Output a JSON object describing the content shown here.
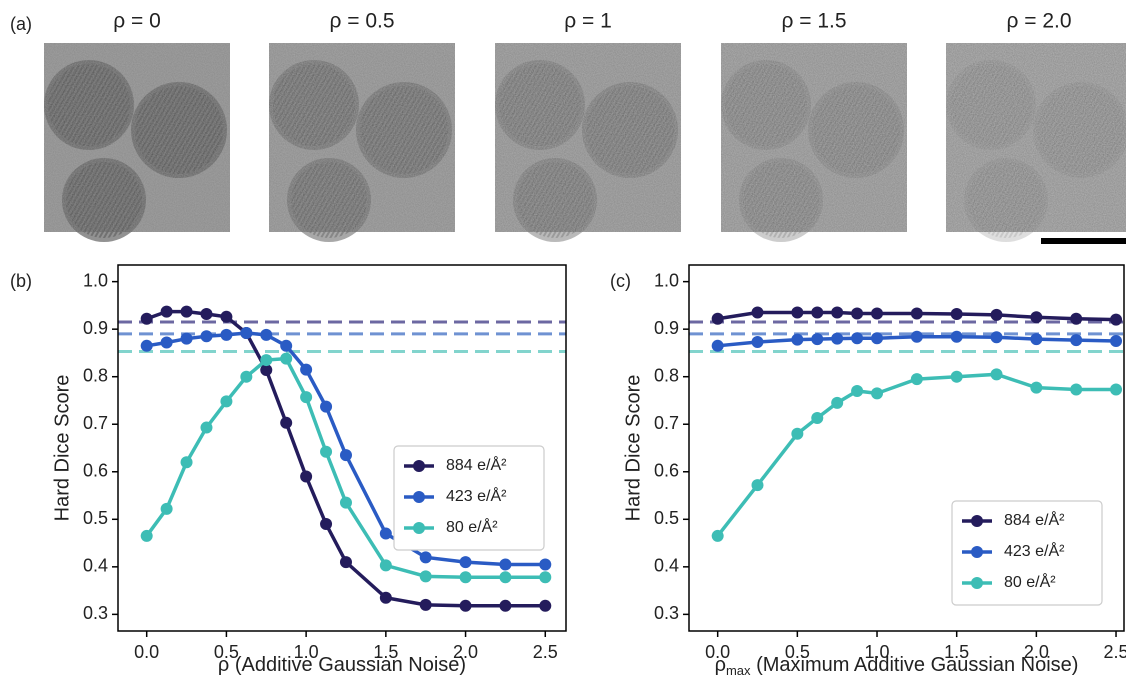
{
  "figure": {
    "panel_label": "(a)",
    "images": [
      {
        "label": "ρ = 0"
      },
      {
        "label": "ρ = 0.5"
      },
      {
        "label": "ρ = 1"
      },
      {
        "label": "ρ = 1.5"
      },
      {
        "label": "ρ = 2.0"
      }
    ]
  },
  "chart_data": [
    {
      "type": "line",
      "panel_label": "(b)",
      "ylabel": "Hard Dice Score",
      "xlabel": "ρ (Additive Gaussian Noise)",
      "x": [
        0,
        0.125,
        0.25,
        0.375,
        0.5,
        0.625,
        0.75,
        0.875,
        1.0,
        1.125,
        1.25,
        1.5,
        1.75,
        2.0,
        2.25,
        2.5
      ],
      "series": [
        {
          "name": "884 e/Å²",
          "color": "#241c5c",
          "values": [
            0.922,
            0.937,
            0.937,
            0.932,
            0.926,
            0.892,
            0.814,
            0.703,
            0.59,
            0.49,
            0.41,
            0.335,
            0.32,
            0.318,
            0.318,
            0.318
          ]
        },
        {
          "name": "423 e/Å²",
          "color": "#2a5bc4",
          "values": [
            0.865,
            0.872,
            0.88,
            0.885,
            0.888,
            0.892,
            0.888,
            0.865,
            0.815,
            0.737,
            0.635,
            0.47,
            0.42,
            0.41,
            0.405,
            0.405
          ]
        },
        {
          "name": "80 e/Å²",
          "color": "#3dbdb5",
          "values": [
            0.465,
            0.522,
            0.62,
            0.693,
            0.748,
            0.8,
            0.835,
            0.838,
            0.757,
            0.642,
            0.535,
            0.403,
            0.38,
            0.378,
            0.378,
            0.378
          ]
        }
      ],
      "reference_lines": [
        {
          "value": 0.915,
          "color": "#6c68a2"
        },
        {
          "value": 0.89,
          "color": "#6f92d2"
        },
        {
          "value": 0.853,
          "color": "#82d4cd"
        }
      ],
      "xlim": [
        -0.18,
        2.63
      ],
      "ylim": [
        0.265,
        1.035
      ],
      "xticks": [
        {
          "value": 0,
          "label": "0.0"
        },
        0.5,
        {
          "value": 1,
          "label": "1.0"
        },
        1.5,
        {
          "value": 2,
          "label": "2.0"
        },
        2.5
      ],
      "yticks": [
        0.3,
        0.4,
        0.5,
        0.6,
        0.7,
        0.8,
        0.9,
        {
          "value": 1,
          "label": "1.0"
        }
      ],
      "legend": "center right"
    },
    {
      "type": "line",
      "panel_label": "(c)",
      "ylabel": "Hard Dice Score",
      "xlabel": "ρ",
      "xlabel_sub": "max",
      "xlabel_rest": " (Maximum Additive Gaussian Noise)",
      "x": [
        0,
        0.25,
        0.5,
        0.625,
        0.75,
        0.875,
        1.0,
        1.25,
        1.5,
        1.75,
        2.0,
        2.25,
        2.5
      ],
      "series": [
        {
          "name": "884 e/Å²",
          "color": "#241c5c",
          "values": [
            0.922,
            0.935,
            0.935,
            0.935,
            0.935,
            0.933,
            0.933,
            0.933,
            0.932,
            0.93,
            0.925,
            0.922,
            0.92
          ]
        },
        {
          "name": "423 e/Å²",
          "color": "#2a5bc4",
          "values": [
            0.865,
            0.873,
            0.878,
            0.879,
            0.88,
            0.881,
            0.881,
            0.884,
            0.884,
            0.883,
            0.879,
            0.877,
            0.875
          ]
        },
        {
          "name": "80 e/Å²",
          "color": "#3dbdb5",
          "values": [
            0.465,
            0.572,
            0.68,
            0.713,
            0.745,
            0.77,
            0.765,
            0.795,
            0.8,
            0.805,
            0.777,
            0.773,
            0.773
          ]
        }
      ],
      "reference_lines": [
        {
          "value": 0.915,
          "color": "#6c68a2"
        },
        {
          "value": 0.89,
          "color": "#6f92d2"
        },
        {
          "value": 0.853,
          "color": "#82d4cd"
        }
      ],
      "xlim": [
        -0.18,
        2.55
      ],
      "ylim": [
        0.265,
        1.035
      ],
      "xticks": [
        {
          "value": 0,
          "label": "0.0"
        },
        0.5,
        {
          "value": 1,
          "label": "1.0"
        },
        1.5,
        {
          "value": 2,
          "label": "2.0"
        },
        2.5
      ],
      "yticks": [
        0.3,
        0.4,
        0.5,
        0.6,
        0.7,
        0.8,
        0.9,
        {
          "value": 1,
          "label": "1.0"
        }
      ],
      "legend": "lower right"
    }
  ]
}
